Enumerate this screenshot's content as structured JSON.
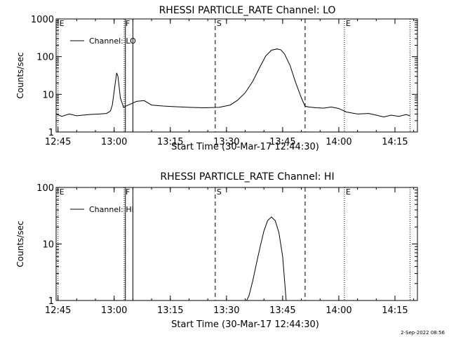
{
  "chart_data": [
    {
      "type": "line",
      "title": "RHESSI PARTICLE_RATE Channel: LO",
      "xlabel": "Start Time (30-Mar-17 12:44:30)",
      "ylabel": "Counts/sec",
      "yscale": "log",
      "ylim": [
        1,
        1000
      ],
      "xlim": [
        "12:44:30",
        "14:21:00"
      ],
      "x_ticks": [
        "12:45",
        "13:00",
        "13:15",
        "13:30",
        "13:45",
        "14:00",
        "14:15"
      ],
      "y_ticks": [
        "1",
        "10",
        "100",
        "1000"
      ],
      "legend": {
        "position": "top-left",
        "entries": [
          "Channel: LO"
        ]
      },
      "markers": [
        {
          "label": "E",
          "time": "12:45:00",
          "style": "dotted"
        },
        {
          "label": "F",
          "time": "13:02:40",
          "style": "dotted"
        },
        {
          "label": "",
          "time": "13:03:00",
          "style": "solid"
        },
        {
          "label": "",
          "time": "13:05:00",
          "style": "solid"
        },
        {
          "label": "S",
          "time": "13:27:00",
          "style": "dashed"
        },
        {
          "label": "",
          "time": "13:51:00",
          "style": "dashed"
        },
        {
          "label": "E",
          "time": "14:01:30",
          "style": "dotted"
        },
        {
          "label": "",
          "time": "14:19:00",
          "style": "dotted"
        }
      ],
      "series": [
        {
          "name": "Channel: LO",
          "x": [
            "12:44:30",
            "12:46:00",
            "12:48:00",
            "12:50:00",
            "12:53:00",
            "12:56:00",
            "12:58:00",
            "12:59:00",
            "12:59:30",
            "13:00:00",
            "13:00:40",
            "13:01:00",
            "13:01:40",
            "13:02:30",
            "13:03:00",
            "13:04:00",
            "13:06:00",
            "13:08:00",
            "13:10:00",
            "13:13:00",
            "13:16:00",
            "13:20:00",
            "13:24:00",
            "13:28:00",
            "13:31:00",
            "13:33:00",
            "13:35:00",
            "13:37:00",
            "13:39:00",
            "13:40:30",
            "13:42:00",
            "13:43:30",
            "13:44:30",
            "13:45:30",
            "13:47:00",
            "13:48:30",
            "13:50:00",
            "13:51:00",
            "13:52:00",
            "13:54:00",
            "13:56:00",
            "13:58:00",
            "14:00:00",
            "14:02:00",
            "14:05:00",
            "14:08:00",
            "14:10:00",
            "14:12:00",
            "14:14:00",
            "14:16:00",
            "14:18:00",
            "14:19:00"
          ],
          "y": [
            3.0,
            2.6,
            3.0,
            2.7,
            2.9,
            3.0,
            3.1,
            3.6,
            5.2,
            12,
            37,
            30,
            8,
            4.5,
            4.8,
            5.3,
            6.5,
            6.8,
            5.2,
            4.9,
            4.7,
            4.5,
            4.4,
            4.5,
            5.2,
            7.0,
            11,
            22,
            55,
            105,
            148,
            160,
            152,
            118,
            58,
            20,
            8,
            4.8,
            4.6,
            4.4,
            4.3,
            4.6,
            4.2,
            3.4,
            3.0,
            3.1,
            2.8,
            2.5,
            2.8,
            2.6,
            2.9,
            2.7
          ]
        }
      ]
    },
    {
      "type": "line",
      "title": "RHESSI PARTICLE_RATE Channel: HI",
      "xlabel": "Start Time (30-Mar-17 12:44:30)",
      "ylabel": "Counts/sec",
      "yscale": "log",
      "ylim": [
        1,
        100
      ],
      "xlim": [
        "12:44:30",
        "14:21:00"
      ],
      "x_ticks": [
        "12:45",
        "13:00",
        "13:15",
        "13:30",
        "13:45",
        "14:00",
        "14:15"
      ],
      "y_ticks": [
        "1",
        "10",
        "100"
      ],
      "legend": {
        "position": "top-left",
        "entries": [
          "Channel: HI"
        ]
      },
      "markers": [
        {
          "label": "E",
          "time": "12:45:00",
          "style": "dotted"
        },
        {
          "label": "F",
          "time": "13:02:40",
          "style": "dotted"
        },
        {
          "label": "",
          "time": "13:03:00",
          "style": "solid"
        },
        {
          "label": "",
          "time": "13:05:00",
          "style": "solid"
        },
        {
          "label": "S",
          "time": "13:27:00",
          "style": "dashed"
        },
        {
          "label": "",
          "time": "13:51:00",
          "style": "dashed"
        },
        {
          "label": "E",
          "time": "14:01:30",
          "style": "dotted"
        },
        {
          "label": "",
          "time": "14:19:00",
          "style": "dotted"
        }
      ],
      "series": [
        {
          "name": "Channel: HI",
          "x": [
            "13:35:00",
            "13:36:00",
            "13:37:00",
            "13:38:00",
            "13:39:00",
            "13:40:00",
            "13:41:00",
            "13:42:00",
            "13:43:00",
            "13:44:00",
            "13:45:00",
            "13:46:00"
          ],
          "y": [
            0.9,
            1.2,
            2.2,
            4.5,
            9,
            17,
            26,
            30,
            26,
            16,
            6,
            0.9
          ]
        }
      ]
    }
  ],
  "footer": {
    "timestamp": "2-Sep-2022 08:56"
  }
}
